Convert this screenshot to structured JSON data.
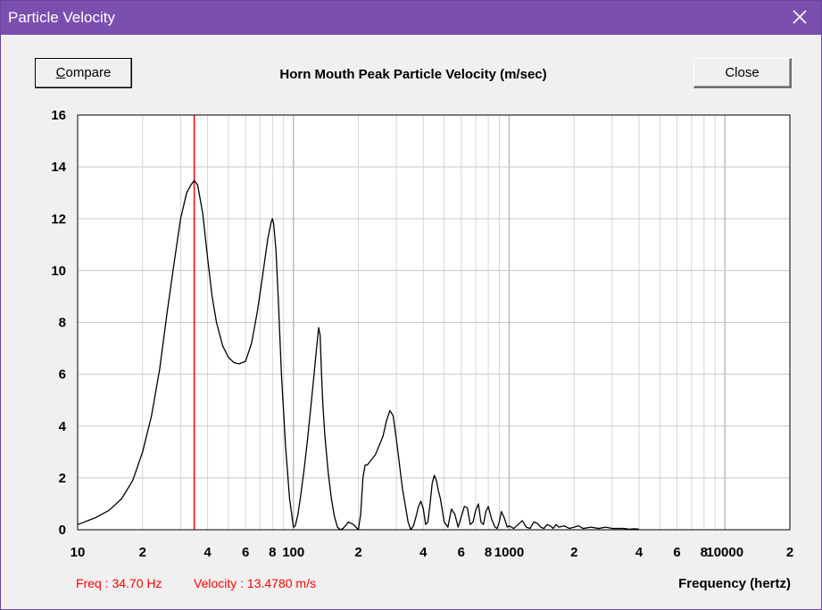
{
  "window": {
    "title": "Particle Velocity",
    "titlebar_color": "#7a4fb0"
  },
  "buttons": {
    "compare_prefix": "C",
    "compare_rest": "ompare",
    "close": "Close"
  },
  "readout": {
    "freq": "Freq : 34.70 Hz",
    "velocity": "Velocity : 13.4780 m/s",
    "color": "#ff0000"
  },
  "chart_data": {
    "type": "line",
    "title": "Horn Mouth Peak Particle Velocity (m/sec)",
    "xlabel": "Frequency (hertz)",
    "ylabel": "",
    "xscale": "log",
    "xlim": [
      10,
      20000
    ],
    "ylim": [
      0,
      16
    ],
    "grid": true,
    "y_ticks": [
      0,
      2,
      4,
      6,
      8,
      10,
      12,
      14,
      16
    ],
    "x_ticks": [
      {
        "value": 10,
        "label": "10"
      },
      {
        "value": 20,
        "label": "2"
      },
      {
        "value": 40,
        "label": "4"
      },
      {
        "value": 60,
        "label": "6"
      },
      {
        "value": 80,
        "label": "8"
      },
      {
        "value": 100,
        "label": "100"
      },
      {
        "value": 200,
        "label": "2"
      },
      {
        "value": 400,
        "label": "4"
      },
      {
        "value": 600,
        "label": "6"
      },
      {
        "value": 800,
        "label": "8"
      },
      {
        "value": 1000,
        "label": "1000"
      },
      {
        "value": 2000,
        "label": "2"
      },
      {
        "value": 4000,
        "label": "4"
      },
      {
        "value": 6000,
        "label": "6"
      },
      {
        "value": 8000,
        "label": "8"
      },
      {
        "value": 10000,
        "label": "10000"
      },
      {
        "value": 20000,
        "label": "2"
      }
    ],
    "cursor": {
      "x": 34.7,
      "color": "#ff0000"
    },
    "series": [
      {
        "color": "#000000",
        "x": [
          10,
          12,
          14,
          16,
          18,
          20,
          22,
          24,
          26,
          28,
          30,
          32,
          33.5,
          34.7,
          36,
          38,
          40,
          42,
          44,
          47,
          50,
          53,
          56,
          60,
          64,
          68,
          72,
          76,
          79,
          80,
          81,
          83,
          85,
          88,
          92,
          96,
          100,
          102,
          105,
          108,
          112,
          116,
          120,
          124,
          128,
          131,
          133,
          135,
          137,
          140,
          145,
          150,
          155,
          160,
          165,
          170,
          180,
          190,
          200,
          205,
          210,
          215,
          220,
          240,
          260,
          270,
          280,
          290,
          300,
          320,
          340,
          350,
          360,
          370,
          380,
          390,
          400,
          410,
          420,
          430,
          440,
          450,
          460,
          470,
          480,
          500,
          520,
          540,
          560,
          580,
          600,
          620,
          640,
          660,
          680,
          700,
          720,
          740,
          760,
          780,
          800,
          830,
          860,
          880,
          900,
          920,
          950,
          980,
          1000,
          1050,
          1100,
          1150,
          1200,
          1250,
          1300,
          1350,
          1400,
          1450,
          1500,
          1550,
          1600,
          1650,
          1700,
          1800,
          1900,
          2000,
          2100,
          2200,
          2400,
          2600,
          2800,
          3000,
          3200,
          3400,
          3600,
          3800,
          4000
        ],
        "y": [
          0.2,
          0.45,
          0.75,
          1.2,
          1.9,
          3.0,
          4.4,
          6.2,
          8.4,
          10.3,
          12.0,
          13.0,
          13.3,
          13.48,
          13.3,
          12.2,
          10.5,
          9.0,
          8.0,
          7.1,
          6.65,
          6.45,
          6.4,
          6.5,
          7.2,
          8.4,
          9.8,
          11.2,
          11.9,
          12.0,
          11.8,
          10.8,
          9.0,
          6.0,
          3.2,
          1.2,
          0.1,
          0.15,
          0.6,
          1.3,
          2.3,
          3.4,
          4.6,
          5.8,
          7.0,
          7.8,
          7.5,
          6.0,
          4.8,
          3.6,
          2.2,
          1.2,
          0.5,
          0.1,
          0.0,
          0.05,
          0.3,
          0.2,
          0.0,
          0.6,
          2.0,
          2.5,
          2.5,
          2.9,
          3.6,
          4.2,
          4.6,
          4.4,
          3.5,
          1.6,
          0.3,
          0.0,
          0.15,
          0.5,
          0.9,
          1.1,
          0.8,
          0.2,
          0.3,
          1.0,
          1.8,
          2.1,
          1.9,
          1.5,
          1.2,
          0.3,
          0.1,
          0.8,
          0.6,
          0.1,
          0.5,
          0.9,
          0.85,
          0.2,
          0.3,
          0.75,
          1.0,
          0.3,
          0.2,
          0.7,
          0.9,
          0.4,
          0.1,
          0.05,
          0.3,
          0.7,
          0.45,
          0.1,
          0.15,
          0.05,
          0.2,
          0.35,
          0.1,
          0.05,
          0.3,
          0.25,
          0.1,
          0.05,
          0.2,
          0.15,
          0.05,
          0.2,
          0.1,
          0.15,
          0.05,
          0.1,
          0.15,
          0.05,
          0.1,
          0.05,
          0.1,
          0.05,
          0.05,
          0.05,
          0.02,
          0.04,
          0.02
        ]
      }
    ]
  }
}
